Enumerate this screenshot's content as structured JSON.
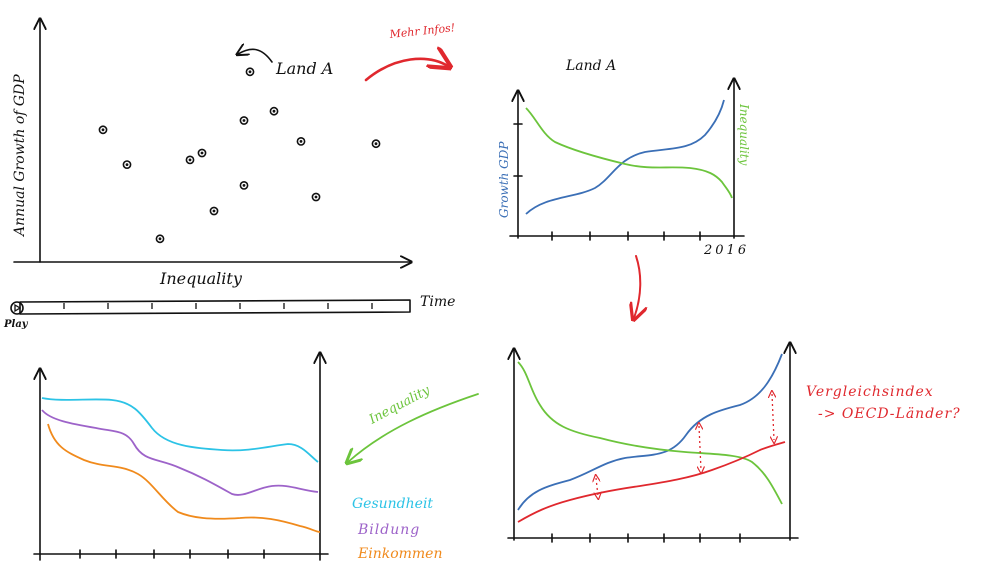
{
  "scatter": {
    "xlabel": "Inequality",
    "ylabel": "Annual Growth of GDP",
    "callout": "Land A",
    "points": [
      [
        29,
        42
      ],
      [
        70,
        82
      ],
      [
        68,
        33
      ],
      [
        54,
        47
      ],
      [
        68,
        61
      ],
      [
        78,
        65
      ],
      [
        87,
        52
      ],
      [
        112,
        51
      ],
      [
        92,
        28
      ],
      [
        50,
        44
      ],
      [
        58,
        22
      ],
      [
        40,
        10
      ],
      [
        21,
        57
      ]
    ]
  },
  "timeline": {
    "label": "Time",
    "play": "Play"
  },
  "annotations": {
    "mehr_infos": "Mehr Infos!",
    "land_title": "Land A",
    "year": "2016",
    "ylabel_left": "Growth GDP",
    "ylabel_right": "Inequality",
    "vergleich_line1": "Vergleichsindex",
    "vergleich_line2": "-> OECD-Länder?",
    "arrow_label": "Inequality"
  },
  "legend": {
    "gesundheit": "Gesundheit",
    "bildung": "Bildung",
    "einkommen": "Einkommen"
  },
  "colors": {
    "ink": "#111111",
    "red": "#e0282e",
    "blue": "#3b6fb6",
    "green": "#6cc43c",
    "cyan": "#2cc3e6",
    "purple": "#9d63c9",
    "orange": "#f08a1c"
  }
}
